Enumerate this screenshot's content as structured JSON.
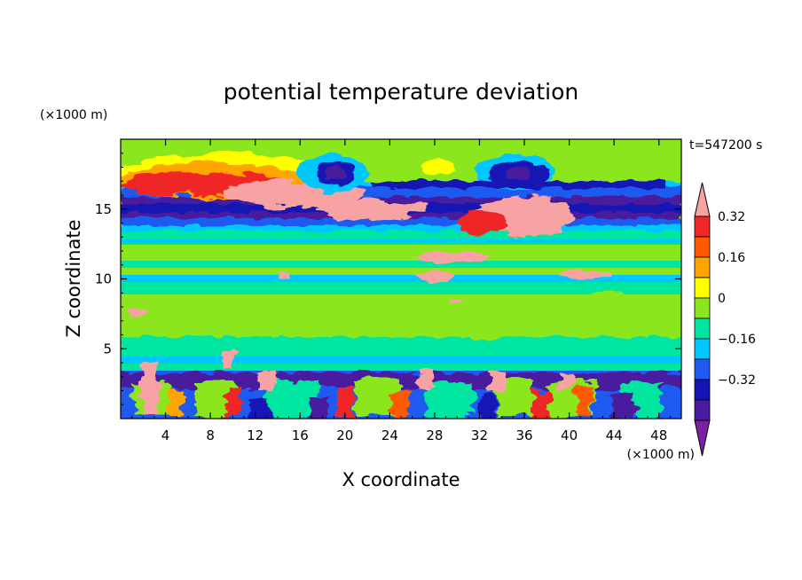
{
  "chart_data": {
    "type": "heatmap",
    "title": "potential temperature deviation",
    "xlabel": "X coordinate",
    "ylabel": "Z coordinate",
    "x_unit_label": "(×1000 m)",
    "y_unit_label": "(×1000 m)",
    "time_label": "t=547200 s",
    "xlim": [
      0,
      50
    ],
    "ylim": [
      0,
      20
    ],
    "x_ticks": [
      4,
      8,
      12,
      16,
      20,
      24,
      28,
      32,
      36,
      40,
      44,
      48
    ],
    "y_ticks": [
      5,
      10,
      15
    ],
    "colorbar": {
      "levels": [
        -0.48,
        -0.4,
        -0.32,
        -0.24,
        -0.16,
        -0.08,
        0,
        0.08,
        0.16,
        0.24,
        0.32,
        0.4
      ],
      "colors": [
        "#7c1fa2",
        "#4a1b9e",
        "#1414b4",
        "#1e5af0",
        "#00c8ff",
        "#00e6a0",
        "#8ce61e",
        "#ffff00",
        "#ffa500",
        "#ff5a00",
        "#f02828",
        "#f7a3a3"
      ],
      "labels": [
        {
          "value": 0.32,
          "text": "0.32"
        },
        {
          "value": 0.16,
          "text": "0.16"
        },
        {
          "value": 0,
          "text": "0"
        },
        {
          "value": -0.16,
          "text": "−0.16"
        },
        {
          "value": -0.32,
          "text": "−0.32"
        }
      ]
    },
    "grid": false
  }
}
